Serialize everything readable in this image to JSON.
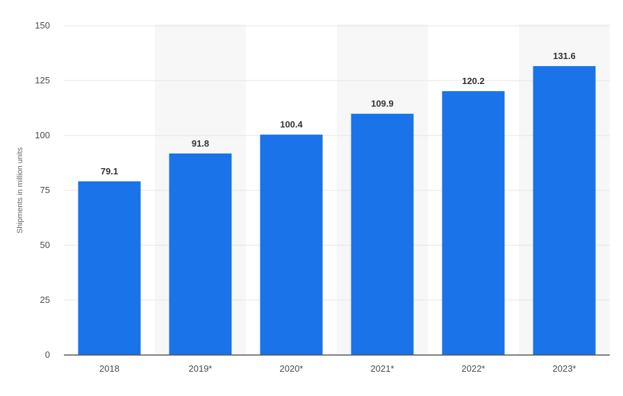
{
  "chart_data": {
    "type": "bar",
    "categories": [
      "2018",
      "2019*",
      "2020*",
      "2021*",
      "2022*",
      "2023*"
    ],
    "values": [
      79.1,
      91.8,
      100.4,
      109.9,
      120.2,
      131.6
    ],
    "value_labels": [
      "79.1",
      "91.8",
      "100.4",
      "109.9",
      "120.2",
      "131.6"
    ],
    "title": "",
    "xlabel": "",
    "ylabel": "Shipments in million units",
    "ylim": [
      0,
      150
    ],
    "yticks": [
      0,
      25,
      50,
      75,
      100,
      125,
      150
    ],
    "grid": true,
    "legend": "none",
    "colors": {
      "bar": "#1a73e8",
      "grid": "#e6e6e6",
      "axis": "#555555",
      "band": "#f7f7f7"
    }
  }
}
